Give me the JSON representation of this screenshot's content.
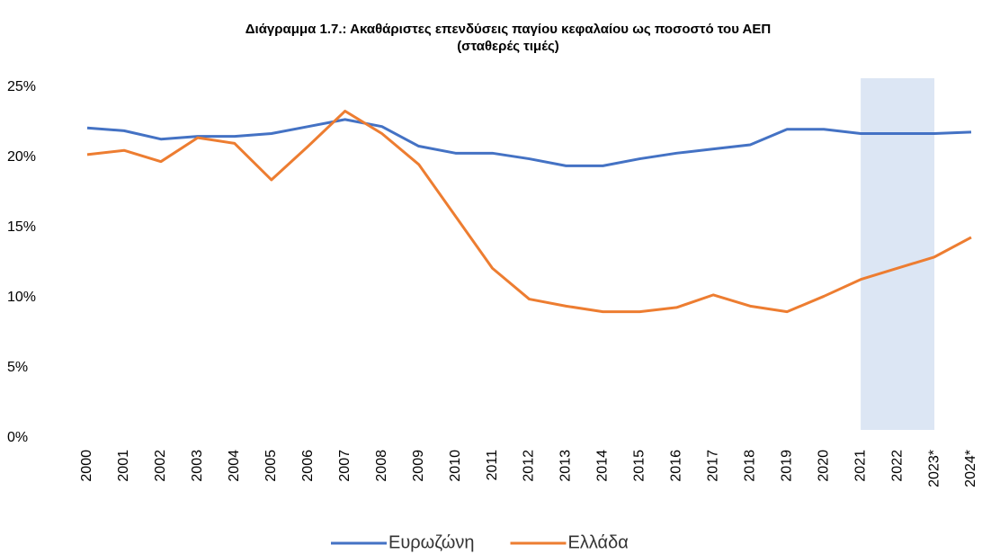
{
  "chart_data": {
    "type": "line",
    "title": [
      "Διάγραμμα 1.7.: Ακαθάριστες επενδύσεις παγίου κεφαλαίου ως ποσοστό του ΑΕΠ",
      "(σταθερές τιμές)"
    ],
    "categories": [
      "2000",
      "2001",
      "2002",
      "2003",
      "2004",
      "2005",
      "2006",
      "2007",
      "2008",
      "2009",
      "2010",
      "2011",
      "2012",
      "2013",
      "2014",
      "2015",
      "2016",
      "2017",
      "2018",
      "2019",
      "2020",
      "2021",
      "2022",
      "2023*",
      "2024*"
    ],
    "series": [
      {
        "name": "Ευρωζώνη",
        "color": "#4472c4",
        "values": [
          22.1,
          21.9,
          21.3,
          21.5,
          21.5,
          21.7,
          22.2,
          22.7,
          22.2,
          20.8,
          20.3,
          20.3,
          19.9,
          19.4,
          19.4,
          19.9,
          20.3,
          20.6,
          20.9,
          22.0,
          22.0,
          21.7,
          21.7,
          21.7,
          21.8
        ]
      },
      {
        "name": "Ελλάδα",
        "color": "#ed7d31",
        "values": [
          20.2,
          20.5,
          19.7,
          21.4,
          21.0,
          18.4,
          20.8,
          23.3,
          21.7,
          19.5,
          15.8,
          12.1,
          9.9,
          9.4,
          9.0,
          9.0,
          9.3,
          10.2,
          9.4,
          9.0,
          10.1,
          11.3,
          12.1,
          12.9,
          14.3
        ]
      }
    ],
    "ylim": [
      0,
      25
    ],
    "yticks": [
      {
        "value": 0,
        "label": "0%"
      },
      {
        "value": 5,
        "label": "5%"
      },
      {
        "value": 10,
        "label": "10%"
      },
      {
        "value": 15,
        "label": "15%"
      },
      {
        "value": 20,
        "label": "20%"
      },
      {
        "value": 25,
        "label": "25%"
      }
    ],
    "grid": false,
    "highlight": [
      "2021",
      "2023*"
    ],
    "highlight_color": "#dce6f4",
    "legend": "bottom"
  }
}
